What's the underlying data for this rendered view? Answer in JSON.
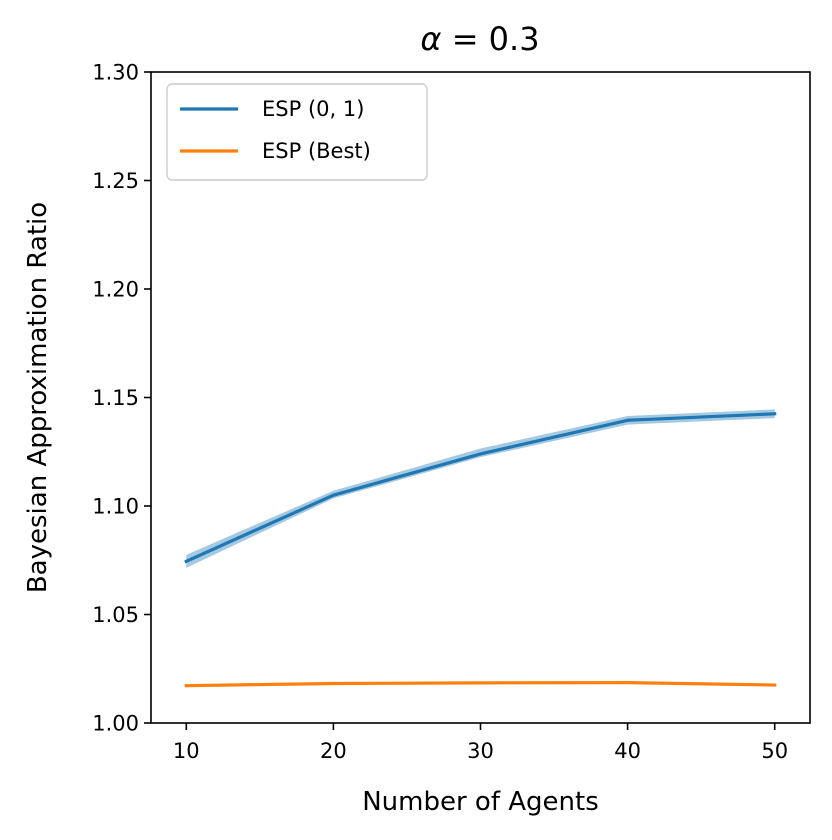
{
  "chart_data": {
    "type": "line",
    "title_math": "α",
    "title_value": " = 0.3",
    "xlabel": "Number of Agents",
    "ylabel": "Bayesian Approximation Ratio",
    "x": [
      10,
      20,
      30,
      40,
      50
    ],
    "xlim": [
      7.6,
      52.4
    ],
    "ylim": [
      1.0,
      1.3
    ],
    "xticks": [
      10,
      20,
      30,
      40,
      50
    ],
    "yticks": [
      "1.00",
      "1.05",
      "1.10",
      "1.15",
      "1.20",
      "1.25",
      "1.30"
    ],
    "legend_position": "top-left",
    "grid": false,
    "series": [
      {
        "name": "ESP (0, 1)",
        "color": "#1f77b4",
        "band_color": "#1f77b4",
        "values": [
          1.0745,
          1.105,
          1.124,
          1.1395,
          1.1425
        ],
        "lower": [
          1.0715,
          1.1035,
          1.1225,
          1.1375,
          1.1405
        ],
        "upper": [
          1.0775,
          1.107,
          1.1265,
          1.1415,
          1.1445
        ]
      },
      {
        "name": "ESP (Best)",
        "color": "#ff7f0e",
        "band_color": "#ff7f0e",
        "values": [
          1.0172,
          1.0182,
          1.0185,
          1.0186,
          1.0175
        ],
        "lower": [
          1.0167,
          1.0178,
          1.0181,
          1.0182,
          1.0171
        ],
        "upper": [
          1.0177,
          1.0186,
          1.0189,
          1.019,
          1.0179
        ]
      }
    ]
  }
}
